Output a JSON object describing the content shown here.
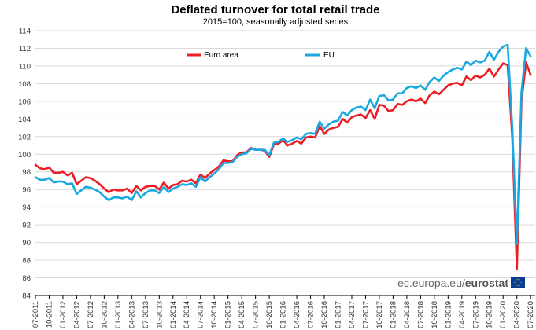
{
  "chart_data": {
    "type": "line",
    "title": "Deflated turnover for total retail trade",
    "subtitle": "2015=100, seasonally adjusted series",
    "xlabel": "",
    "ylabel": "",
    "ylim": [
      84,
      114
    ],
    "yticks": [
      84,
      86,
      88,
      90,
      92,
      94,
      96,
      98,
      100,
      102,
      104,
      106,
      108,
      110,
      112,
      114
    ],
    "start": "2011-07",
    "xticks": [
      "07-2011",
      "10-2011",
      "01-2012",
      "04-2012",
      "07-2012",
      "10-2012",
      "01-2013",
      "04-2013",
      "07-2013",
      "10-2013",
      "01-2014",
      "04-2014",
      "07-2014",
      "10-2014",
      "01-2015",
      "04-2015",
      "07-2015",
      "10-2015",
      "01-2016",
      "04-2016",
      "07-2016",
      "10-2016",
      "01-2017",
      "04-2017",
      "07-2017",
      "10-2017",
      "01-2018",
      "04-2018",
      "07-2018",
      "10-2018",
      "01-2019",
      "04-2019",
      "07-2019",
      "10-2019",
      "01-2020",
      "04-2020",
      "07-2020"
    ],
    "grid": "horizontal",
    "legend_position": "top-left",
    "series": [
      {
        "name": "Euro area",
        "color": "#ee1c25",
        "values": [
          98.8,
          98.4,
          98.3,
          98.5,
          97.9,
          97.9,
          98.0,
          97.6,
          97.9,
          96.6,
          97.0,
          97.4,
          97.3,
          97.0,
          96.6,
          96.1,
          95.7,
          96.0,
          95.9,
          95.9,
          96.1,
          95.6,
          96.4,
          95.9,
          96.3,
          96.4,
          96.4,
          96.0,
          96.8,
          96.1,
          96.5,
          96.6,
          97.0,
          96.9,
          97.1,
          96.7,
          97.7,
          97.3,
          97.8,
          98.2,
          98.6,
          99.3,
          99.2,
          99.2,
          99.9,
          100.2,
          100.2,
          100.7,
          100.5,
          100.5,
          100.4,
          99.7,
          101.1,
          101.2,
          101.6,
          101.0,
          101.2,
          101.5,
          101.2,
          101.9,
          102.0,
          101.9,
          103.2,
          102.3,
          102.8,
          103.0,
          103.1,
          104.0,
          103.6,
          104.2,
          104.4,
          104.5,
          104.1,
          105.0,
          104.0,
          105.6,
          105.5,
          104.9,
          105.0,
          105.7,
          105.6,
          106.0,
          106.2,
          106.0,
          106.3,
          105.8,
          106.7,
          107.1,
          106.8,
          107.3,
          107.8,
          108.0,
          108.1,
          107.8,
          108.8,
          108.4,
          108.9,
          108.7,
          109.0,
          109.7,
          108.8,
          109.6,
          110.3,
          110.1,
          101.9,
          87.0,
          106.0,
          110.4,
          109.0
        ]
      },
      {
        "name": "EU",
        "color": "#1aa8e0",
        "values": [
          97.4,
          97.1,
          97.1,
          97.3,
          96.8,
          96.9,
          96.9,
          96.6,
          96.7,
          95.5,
          95.9,
          96.3,
          96.2,
          96.0,
          95.7,
          95.2,
          94.8,
          95.1,
          95.1,
          95.0,
          95.2,
          94.8,
          95.8,
          95.1,
          95.6,
          95.9,
          95.9,
          95.6,
          96.3,
          95.7,
          96.1,
          96.3,
          96.6,
          96.5,
          96.7,
          96.3,
          97.4,
          96.9,
          97.4,
          97.8,
          98.3,
          99.0,
          99.0,
          99.1,
          99.7,
          100.0,
          100.1,
          100.6,
          100.5,
          100.5,
          100.5,
          99.9,
          101.3,
          101.4,
          101.8,
          101.4,
          101.6,
          101.9,
          101.7,
          102.3,
          102.4,
          102.3,
          103.7,
          102.9,
          103.4,
          103.7,
          103.8,
          104.8,
          104.4,
          105.0,
          105.3,
          105.4,
          105.0,
          106.2,
          105.2,
          106.6,
          106.7,
          106.1,
          106.2,
          106.9,
          106.9,
          107.5,
          107.7,
          107.5,
          107.8,
          107.3,
          108.2,
          108.7,
          108.3,
          108.9,
          109.3,
          109.6,
          109.8,
          109.6,
          110.5,
          110.1,
          110.6,
          110.4,
          110.6,
          111.6,
          110.7,
          111.6,
          112.2,
          112.4,
          103.0,
          89.8,
          107.0,
          112.0,
          111.1
        ]
      }
    ]
  },
  "credit": {
    "url": "ec.europa.eu/",
    "brand": "eurostat",
    "flag_color": "#0a3d91",
    "star_color": "#ffdd00"
  }
}
